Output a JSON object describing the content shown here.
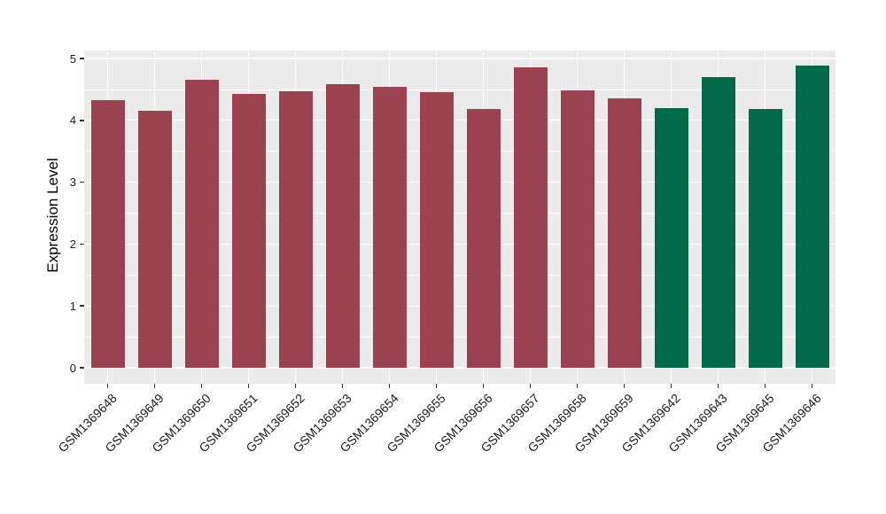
{
  "chart_data": {
    "type": "bar",
    "title": "",
    "xlabel": "",
    "ylabel": "Expression Level",
    "ylim": [
      0,
      5
    ],
    "grid": true,
    "legend": "none",
    "panel_background": "#EBEBEB",
    "gridline_color": "#FFFFFF",
    "y_major_ticks": [
      0,
      1,
      2,
      3,
      4,
      5
    ],
    "y_tick_labels": [
      "0",
      "1",
      "2",
      "3",
      "4",
      "5"
    ],
    "y_minor_ticks": [
      0.5,
      1.5,
      2.5,
      3.5,
      4.5
    ],
    "categories": [
      "GSM1369648",
      "GSM1369649",
      "GSM1369650",
      "GSM1369651",
      "GSM1369652",
      "GSM1369653",
      "GSM1369654",
      "GSM1369655",
      "GSM1369656",
      "GSM1369657",
      "GSM1369658",
      "GSM1369659",
      "GSM1369642",
      "GSM1369643",
      "GSM1369645",
      "GSM1369646"
    ],
    "values": [
      4.32,
      4.16,
      4.66,
      4.43,
      4.47,
      4.59,
      4.54,
      4.46,
      4.19,
      4.85,
      4.48,
      4.36,
      4.2,
      4.7,
      4.18,
      4.89
    ],
    "bar_groups": [
      "maroon",
      "maroon",
      "maroon",
      "maroon",
      "maroon",
      "maroon",
      "maroon",
      "maroon",
      "maroon",
      "maroon",
      "maroon",
      "maroon",
      "green",
      "green",
      "green",
      "green"
    ],
    "palette": {
      "maroon": "#9B4250",
      "green": "#006A4A"
    }
  }
}
